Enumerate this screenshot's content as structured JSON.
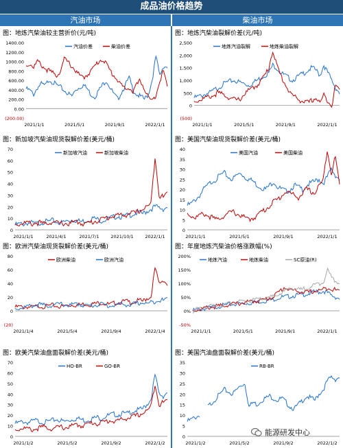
{
  "header": {
    "title": "成品油价格趋势",
    "left_section": "汽油市场",
    "right_section": "柴油市场"
  },
  "watermark": "能源研发中心",
  "colors": {
    "blue": "#1f6fd0",
    "red": "#c00000",
    "gray": "#a6a6a6",
    "header": "#1f4e79",
    "section": "#2e75b6"
  },
  "chart_data": [
    {
      "id": "p1",
      "type": "line",
      "title": "图：地炼汽柴油较主营折价(元/吨)",
      "yticks": [
        -200,
        0,
        200,
        400,
        600,
        800,
        1000,
        1200,
        1400
      ],
      "ytick_labels": [
        "(200.00)",
        "0.00",
        "200.00",
        "400.00",
        "600.00",
        "800.00",
        "1000.00",
        "1200.00",
        "1400.00"
      ],
      "ylim": [
        -200,
        1400
      ],
      "xticks": [
        "2021/1/1",
        "2021/5/1",
        "2021/9/1",
        "2022/1/1"
      ],
      "series": [
        {
          "name": "汽油价差",
          "color": "blue",
          "values": [
            420,
            380,
            300,
            450,
            520,
            480,
            620,
            560,
            500,
            450,
            380,
            320,
            260,
            400,
            450,
            500,
            420,
            300,
            250,
            380,
            500,
            600,
            450,
            300,
            200,
            350,
            500,
            650,
            400,
            300,
            250,
            200,
            300,
            600,
            1100,
            700,
            900,
            880
          ]
        },
        {
          "name": "柴油价差",
          "color": "red",
          "values": [
            900,
            950,
            880,
            1000,
            920,
            850,
            800,
            750,
            700,
            800,
            1050,
            980,
            900,
            800,
            700,
            650,
            720,
            800,
            900,
            1000,
            1050,
            950,
            800,
            700,
            600,
            500,
            400,
            450,
            350,
            500,
            600,
            400,
            250,
            150,
            300,
            600,
            800,
            450
          ]
        }
      ]
    },
    {
      "id": "p2",
      "type": "line",
      "title": "图：地炼汽柴油裂解价差(元/吨)",
      "yticks": [
        -500,
        0,
        500,
        1000,
        1500,
        2000,
        2500
      ],
      "ytick_labels": [
        "(500)",
        "0",
        "500",
        "1,000",
        "1,500",
        "2,000",
        "2,500"
      ],
      "ylim": [
        -500,
        2500
      ],
      "xticks": [
        "2021/1/1",
        "2021/5/1",
        "2021/9/1",
        "2022/1/1"
      ],
      "series": [
        {
          "name": "地炼汽油裂解",
          "color": "blue",
          "values": [
            300,
            350,
            400,
            450,
            500,
            600,
            700,
            800,
            900,
            950,
            1000,
            950,
            900,
            850,
            800,
            900,
            1000,
            1100,
            1200,
            1300,
            1600,
            1500,
            1300,
            1200,
            1100,
            1000,
            1100,
            1200,
            1300,
            1400,
            1500,
            1400,
            1200,
            1600,
            1300,
            1000,
            700,
            500
          ]
        },
        {
          "name": "地炼柴油裂解",
          "color": "red",
          "values": [
            150,
            200,
            250,
            300,
            350,
            400,
            500,
            450,
            400,
            300,
            250,
            200,
            300,
            500,
            600,
            700,
            800,
            1000,
            1200,
            1500,
            2200,
            1600,
            1200,
            900,
            600,
            400,
            300,
            200,
            150,
            100,
            200,
            300,
            100,
            400,
            200,
            0,
            800,
            600
          ]
        }
      ]
    },
    {
      "id": "p3",
      "type": "line",
      "title": "图：新加坡汽柴油现货裂解价差(美元/桶)",
      "yticks": [
        0,
        10,
        20,
        30,
        40,
        50,
        60,
        70
      ],
      "ytick_labels": [
        "0",
        "10",
        "20",
        "30",
        "40",
        "50",
        "60",
        "70"
      ],
      "ylim": [
        0,
        70
      ],
      "xticks": [
        "2021/1/1",
        "2021/4/1",
        "2021/7/1",
        "2021/10/1",
        "2022/1/1"
      ],
      "series": [
        {
          "name": "新加坡汽油",
          "color": "blue",
          "values": [
            4,
            5,
            5,
            6,
            6,
            5,
            6,
            7,
            7,
            8,
            7,
            6,
            7,
            8,
            9,
            8,
            7,
            8,
            9,
            10,
            9,
            8,
            9,
            10,
            11,
            12,
            11,
            12,
            13,
            14,
            15,
            14,
            16,
            18,
            20,
            19,
            18,
            20
          ]
        },
        {
          "name": "新加坡柴油",
          "color": "red",
          "values": [
            5,
            5,
            6,
            6,
            5,
            6,
            6,
            5,
            6,
            7,
            6,
            5,
            6,
            5,
            6,
            7,
            6,
            5,
            6,
            7,
            8,
            9,
            10,
            11,
            12,
            13,
            12,
            13,
            15,
            14,
            16,
            18,
            20,
            22,
            64,
            30,
            28,
            32
          ]
        }
      ]
    },
    {
      "id": "p4",
      "type": "line",
      "title": "图：美国汽柴油现货裂解价差(美元/桶)",
      "yticks": [
        0,
        5,
        10,
        15,
        20,
        25,
        30,
        35,
        40
      ],
      "ytick_labels": [
        "0",
        "5",
        "10",
        "15",
        "20",
        "25",
        "30",
        "35",
        "40"
      ],
      "ylim": [
        0,
        40
      ],
      "xticks": [
        "2021/1/1",
        "2021/5/1",
        "2021/9/1",
        "2022/1/1"
      ],
      "series": [
        {
          "name": "美国汽油",
          "color": "blue",
          "values": [
            12,
            13,
            15,
            17,
            20,
            22,
            24,
            25,
            27,
            28,
            26,
            25,
            27,
            28,
            26,
            25,
            24,
            22,
            21,
            20,
            22,
            24,
            21,
            20,
            19,
            20,
            22,
            21,
            20,
            22,
            23,
            24,
            25,
            23,
            26,
            30,
            27,
            25
          ]
        },
        {
          "name": "美国柴油",
          "color": "red",
          "values": [
            8,
            7,
            6,
            7,
            8,
            7,
            6,
            5,
            6,
            7,
            8,
            9,
            8,
            7,
            6,
            5,
            6,
            7,
            9,
            10,
            12,
            14,
            15,
            17,
            19,
            18,
            17,
            16,
            18,
            20,
            19,
            18,
            22,
            24,
            40,
            28,
            36,
            22
          ]
        }
      ]
    },
    {
      "id": "p5",
      "type": "line",
      "title": "图：欧洲汽柴油现货裂解价差(美元/桶)",
      "yticks": [
        -20,
        0,
        20,
        40,
        60,
        80
      ],
      "ytick_labels": [
        "(20)",
        "0",
        "20",
        "40",
        "60",
        "80"
      ],
      "ylim": [
        -20,
        80
      ],
      "xticks": [
        "2021/1/4",
        "2021/5/4",
        "2021/9/4",
        "2022/1/4"
      ],
      "series": [
        {
          "name": "欧洲柴油",
          "color": "red",
          "values": [
            5,
            6,
            5,
            6,
            5,
            6,
            7,
            6,
            7,
            8,
            7,
            6,
            7,
            8,
            9,
            8,
            9,
            10,
            9,
            10,
            11,
            12,
            10,
            9,
            11,
            12,
            13,
            14,
            12,
            13,
            15,
            14,
            18,
            20,
            62,
            40,
            45,
            38
          ]
        },
        {
          "name": "欧洲汽油",
          "color": "blue",
          "values": [
            3,
            4,
            5,
            6,
            7,
            8,
            9,
            8,
            7,
            8,
            9,
            10,
            9,
            8,
            9,
            10,
            9,
            8,
            7,
            8,
            9,
            10,
            8,
            7,
            8,
            9,
            10,
            9,
            8,
            10,
            11,
            12,
            10,
            12,
            14,
            16,
            15,
            18
          ]
        }
      ]
    },
    {
      "id": "p6",
      "type": "line",
      "title": "图：年度地炼汽柴油价格涨跌幅(%)",
      "yticks": [
        -50,
        0,
        50,
        100,
        150,
        200
      ],
      "ytick_labels": [
        "-50%",
        "0%",
        "50%",
        "100%",
        "150%",
        "200%"
      ],
      "ylim": [
        -50,
        200
      ],
      "xticks": [
        "2021/1/1",
        "2021/5/1",
        "2021/9/1",
        "2022/1/1"
      ],
      "series": [
        {
          "name": "地炼汽油",
          "color": "blue",
          "values": [
            0,
            3,
            5,
            8,
            10,
            12,
            15,
            18,
            20,
            22,
            24,
            25,
            26,
            27,
            28,
            30,
            32,
            34,
            36,
            38,
            40,
            45,
            48,
            50,
            52,
            54,
            56,
            58,
            60,
            62,
            66,
            70,
            68,
            72,
            65,
            55,
            50,
            45
          ]
        },
        {
          "name": "地炼柴油",
          "color": "red",
          "values": [
            0,
            4,
            6,
            9,
            12,
            14,
            16,
            18,
            20,
            22,
            24,
            26,
            28,
            30,
            32,
            34,
            36,
            38,
            40,
            45,
            50,
            60,
            72,
            85,
            80,
            75,
            72,
            70,
            68,
            66,
            70,
            72,
            74,
            78,
            85,
            80,
            75,
            72
          ]
        },
        {
          "name": "SC原油(R)",
          "color": "gray",
          "values": [
            0,
            5,
            8,
            12,
            15,
            18,
            20,
            22,
            24,
            26,
            28,
            30,
            32,
            34,
            36,
            38,
            40,
            42,
            44,
            46,
            50,
            55,
            62,
            70,
            78,
            85,
            80,
            75,
            80,
            85,
            90,
            95,
            100,
            110,
            150,
            120,
            110,
            100
          ]
        }
      ]
    },
    {
      "id": "p7",
      "type": "line",
      "title": "图：欧美汽柴油盘面裂解价差(美元/桶)",
      "yticks": [
        0,
        10,
        20,
        30,
        40,
        50,
        60,
        70
      ],
      "ytick_labels": [
        "0",
        "10",
        "20",
        "30",
        "40",
        "50",
        "60",
        "70"
      ],
      "ylim": [
        0,
        70
      ],
      "xticks": [
        "2021/1/2",
        "2021/5/2",
        "2021/9/2",
        "2022/1/2"
      ],
      "series": [
        {
          "name": "HO-BR",
          "color": "blue",
          "values": [
            12,
            13,
            14,
            13,
            14,
            15,
            14,
            13,
            14,
            15,
            16,
            15,
            14,
            15,
            16,
            17,
            16,
            15,
            16,
            17,
            18,
            17,
            19,
            20,
            21,
            20,
            22,
            21,
            23,
            24,
            25,
            26,
            30,
            35,
            58,
            40,
            38,
            42
          ]
        },
        {
          "name": "GO-BR",
          "color": "red",
          "values": [
            6,
            7,
            8,
            7,
            6,
            7,
            8,
            9,
            8,
            7,
            8,
            9,
            8,
            9,
            10,
            11,
            10,
            11,
            12,
            13,
            12,
            13,
            14,
            15,
            14,
            15,
            16,
            17,
            18,
            19,
            20,
            22,
            24,
            28,
            50,
            30,
            32,
            34
          ]
        }
      ]
    },
    {
      "id": "p8",
      "type": "line",
      "title": "图：美国汽油盘面裂解价差(美元/桶)",
      "yticks": [
        0,
        5,
        10,
        15,
        20,
        25,
        30,
        35
      ],
      "ytick_labels": [
        "0",
        "5",
        "10",
        "15",
        "20",
        "25",
        "30",
        "35"
      ],
      "ylim": [
        0,
        35
      ],
      "xticks": [
        "2021/1/2",
        "2021/5/2",
        "2021/9/2",
        "2022/1/2"
      ],
      "series": [
        {
          "name": "RB-BR",
          "color": "blue",
          "values": [
            7,
            8,
            9,
            10,
            null,
            14,
            16,
            18,
            20,
            22,
            21,
            20,
            22,
            24,
            25,
            14,
            16,
            15,
            17,
            18,
            19,
            18,
            17,
            18,
            16,
            14,
            13,
            15,
            17,
            19,
            18,
            17,
            20,
            22,
            26,
            28,
            27,
            28
          ]
        }
      ]
    }
  ]
}
